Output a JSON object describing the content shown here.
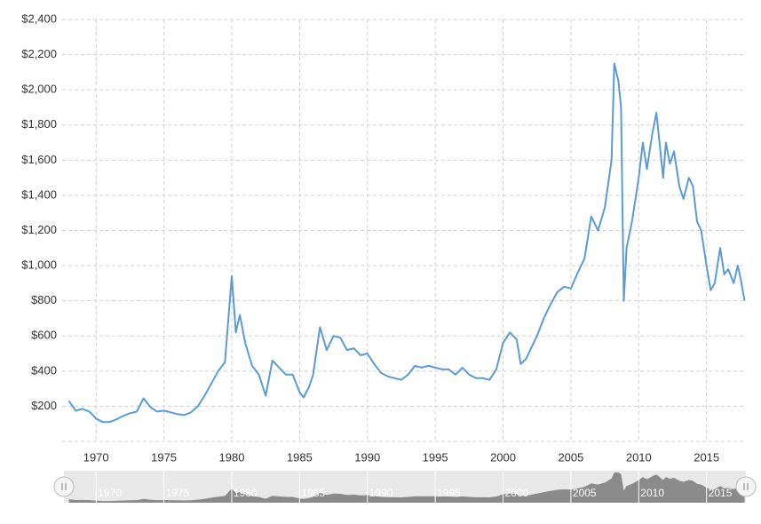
{
  "chart_data": {
    "type": "line",
    "color": "#5b9bd5",
    "grid": true,
    "x": [
      1968.0,
      1968.5,
      1969.0,
      1969.5,
      1970.0,
      1970.5,
      1971.0,
      1971.5,
      1972.0,
      1972.5,
      1973.0,
      1973.5,
      1974.0,
      1974.5,
      1975.0,
      1975.5,
      1976.0,
      1976.5,
      1977.0,
      1977.5,
      1978.0,
      1978.5,
      1979.0,
      1979.5,
      1980.0,
      1980.3,
      1980.6,
      1981.0,
      1981.5,
      1982.0,
      1982.5,
      1983.0,
      1983.5,
      1984.0,
      1984.5,
      1985.0,
      1985.3,
      1985.7,
      1986.0,
      1986.5,
      1987.0,
      1987.5,
      1988.0,
      1988.5,
      1989.0,
      1989.5,
      1990.0,
      1990.5,
      1991.0,
      1991.5,
      1992.0,
      1992.5,
      1993.0,
      1993.5,
      1994.0,
      1994.5,
      1995.0,
      1995.5,
      1996.0,
      1996.5,
      1997.0,
      1997.5,
      1998.0,
      1998.5,
      1999.0,
      1999.5,
      2000.0,
      2000.5,
      2001.0,
      2001.3,
      2001.7,
      2002.0,
      2002.5,
      2003.0,
      2003.5,
      2004.0,
      2004.5,
      2005.0,
      2005.5,
      2006.0,
      2006.5,
      2007.0,
      2007.5,
      2008.0,
      2008.2,
      2008.5,
      2008.7,
      2008.9,
      2009.1,
      2009.5,
      2010.0,
      2010.3,
      2010.6,
      2011.0,
      2011.3,
      2011.6,
      2011.8,
      2012.0,
      2012.3,
      2012.6,
      2013.0,
      2013.3,
      2013.7,
      2014.0,
      2014.3,
      2014.6,
      2015.0,
      2015.3,
      2015.6,
      2016.0,
      2016.3,
      2016.6,
      2017.0,
      2017.3,
      2017.5,
      2017.8
    ],
    "values": [
      230,
      175,
      185,
      170,
      130,
      110,
      110,
      125,
      145,
      160,
      170,
      245,
      195,
      170,
      175,
      165,
      155,
      150,
      165,
      200,
      260,
      330,
      400,
      450,
      940,
      620,
      720,
      560,
      430,
      380,
      260,
      460,
      420,
      380,
      380,
      280,
      250,
      310,
      380,
      650,
      520,
      600,
      590,
      520,
      530,
      490,
      500,
      440,
      390,
      370,
      360,
      350,
      380,
      430,
      420,
      430,
      420,
      410,
      410,
      380,
      420,
      380,
      360,
      360,
      350,
      410,
      560,
      620,
      580,
      440,
      470,
      520,
      600,
      700,
      780,
      850,
      880,
      870,
      960,
      1040,
      1280,
      1200,
      1330,
      1600,
      2150,
      2050,
      1900,
      800,
      1100,
      1250,
      1500,
      1700,
      1550,
      1750,
      1870,
      1650,
      1500,
      1700,
      1580,
      1650,
      1450,
      1380,
      1500,
      1450,
      1250,
      1200,
      1000,
      860,
      900,
      1100,
      950,
      980,
      900,
      1000,
      930,
      800
    ],
    "xlim": [
      1967.5,
      2017.9
    ],
    "xticks": [
      1970,
      1975,
      1980,
      1985,
      1990,
      1995,
      2000,
      2005,
      2010,
      2015
    ],
    "ylim": [
      0,
      2400
    ],
    "yticks": [
      {
        "value": 200,
        "label": "$200"
      },
      {
        "value": 400,
        "label": "$400"
      },
      {
        "value": 600,
        "label": "$600"
      },
      {
        "value": 800,
        "label": "$800"
      },
      {
        "value": 1000,
        "label": "$1,000"
      },
      {
        "value": 1200,
        "label": "$1,200"
      },
      {
        "value": 1400,
        "label": "$1,400"
      },
      {
        "value": 1600,
        "label": "$1,600"
      },
      {
        "value": 1800,
        "label": "$1,800"
      },
      {
        "value": 2000,
        "label": "$2,000"
      },
      {
        "value": 2200,
        "label": "$2,200"
      },
      {
        "value": 2400,
        "label": "$2,400"
      }
    ]
  }
}
